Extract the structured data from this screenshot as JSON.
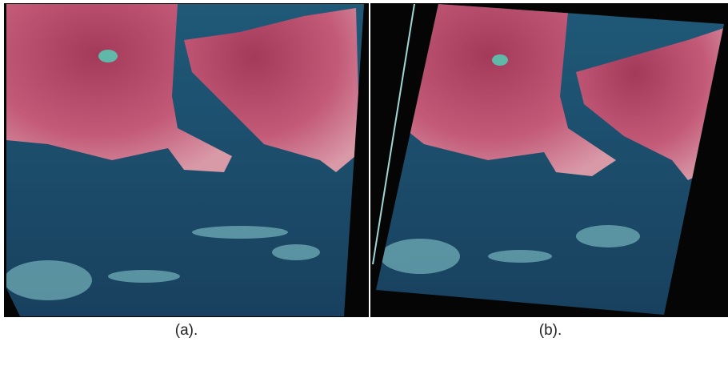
{
  "panels": [
    {
      "caption": "(a)."
    },
    {
      "caption": "(b)."
    }
  ]
}
